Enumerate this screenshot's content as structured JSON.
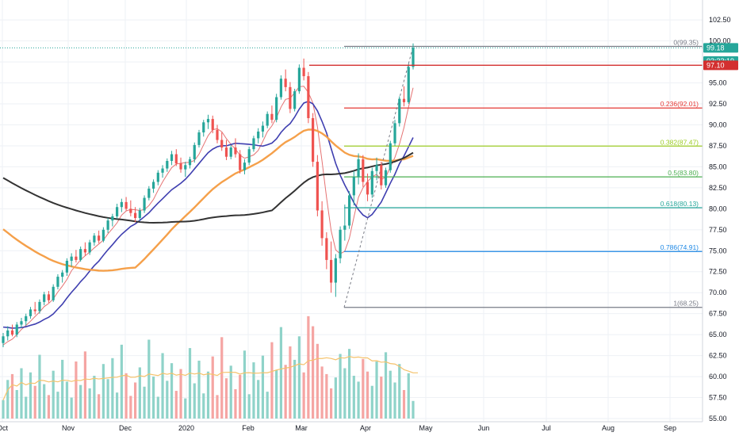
{
  "chart_data": {
    "type": "candlestick",
    "y_axis": {
      "range": [
        55.0,
        104.5
      ],
      "ticks": [
        "55.00",
        "57.50",
        "60.00",
        "62.50",
        "65.00",
        "67.50",
        "70.00",
        "72.50",
        "75.00",
        "77.50",
        "80.00",
        "82.50",
        "85.00",
        "87.50",
        "90.00",
        "92.50",
        "95.00",
        "97.50",
        "100.00",
        "102.50"
      ]
    },
    "x_axis": {
      "labels": [
        "Oct",
        "Nov",
        "Dec",
        "2020",
        "Feb",
        "Mar",
        "Apr",
        "May",
        "Jun",
        "Jul",
        "Aug",
        "Sep"
      ]
    },
    "price_tags": [
      {
        "value": 99.18,
        "text": "99.18",
        "color": "#26a69a"
      },
      {
        "value": 97.6,
        "text": "03:33:19",
        "color": "#26a69a"
      },
      {
        "value": 97.1,
        "text": "97.10",
        "color": "#d32f2f"
      }
    ],
    "horizontal_line": {
      "value": 97.1,
      "color": "#d32f2f"
    },
    "fibonacci": [
      {
        "level": 0,
        "price": 99.35,
        "label": "0(99.35)",
        "color": "#787b86"
      },
      {
        "level": 0.236,
        "price": 92.01,
        "label": "0.236(92.01)",
        "color": "#e53935"
      },
      {
        "level": 0.382,
        "price": 87.47,
        "label": "0.382(87.47)",
        "color": "#9ccc24"
      },
      {
        "level": 0.5,
        "price": 83.8,
        "label": "0.5(83.80)",
        "color": "#4caf50"
      },
      {
        "level": 0.618,
        "price": 80.13,
        "label": "0.618(80.13)",
        "color": "#26a69a"
      },
      {
        "level": 0.786,
        "price": 74.91,
        "label": "0.786(74.91)",
        "color": "#1e88e5"
      },
      {
        "level": 1,
        "price": 68.25,
        "label": "1(68.25)",
        "color": "#787b86"
      }
    ],
    "candles": [
      [
        64.0,
        65.2,
        63.5,
        64.8
      ],
      [
        64.8,
        66.0,
        64.3,
        65.5
      ],
      [
        65.5,
        66.2,
        64.8,
        65.0
      ],
      [
        65.0,
        66.5,
        64.7,
        66.2
      ],
      [
        66.2,
        67.0,
        65.8,
        66.6
      ],
      [
        66.6,
        67.5,
        66.1,
        67.2
      ],
      [
        67.2,
        68.3,
        66.9,
        68.0
      ],
      [
        68.0,
        68.9,
        67.4,
        67.8
      ],
      [
        67.8,
        69.2,
        67.5,
        68.9
      ],
      [
        68.9,
        70.1,
        68.5,
        69.8
      ],
      [
        69.8,
        70.2,
        68.8,
        69.1
      ],
      [
        69.1,
        71.0,
        68.9,
        70.7
      ],
      [
        70.7,
        72.2,
        70.4,
        71.9
      ],
      [
        71.9,
        72.7,
        71.2,
        72.4
      ],
      [
        72.4,
        74.1,
        72.0,
        73.8
      ],
      [
        73.8,
        74.7,
        73.1,
        74.3
      ],
      [
        74.3,
        75.1,
        73.6,
        73.9
      ],
      [
        73.9,
        75.5,
        73.7,
        75.2
      ],
      [
        75.2,
        76.0,
        74.4,
        74.8
      ],
      [
        74.8,
        76.3,
        74.5,
        76.0
      ],
      [
        76.0,
        77.1,
        75.6,
        76.8
      ],
      [
        76.8,
        77.4,
        75.9,
        76.2
      ],
      [
        76.2,
        77.8,
        76.0,
        77.5
      ],
      [
        77.5,
        78.9,
        77.1,
        78.6
      ],
      [
        78.6,
        79.4,
        77.9,
        79.1
      ],
      [
        79.1,
        80.6,
        78.8,
        80.2
      ],
      [
        80.2,
        81.2,
        79.6,
        80.8
      ],
      [
        80.8,
        81.4,
        79.8,
        80.0
      ],
      [
        80.0,
        81.0,
        79.1,
        79.5
      ],
      [
        79.5,
        80.2,
        78.4,
        78.9
      ],
      [
        78.9,
        80.1,
        78.6,
        79.8
      ],
      [
        79.8,
        81.6,
        79.5,
        81.3
      ],
      [
        81.3,
        82.7,
        81.0,
        82.4
      ],
      [
        82.4,
        83.5,
        81.9,
        83.2
      ],
      [
        83.2,
        84.6,
        82.8,
        84.3
      ],
      [
        84.3,
        85.2,
        83.7,
        84.8
      ],
      [
        84.8,
        86.0,
        84.4,
        85.7
      ],
      [
        85.7,
        86.9,
        85.2,
        86.5
      ],
      [
        86.5,
        87.1,
        85.1,
        85.4
      ],
      [
        85.4,
        86.1,
        84.3,
        84.7
      ],
      [
        84.7,
        85.6,
        83.8,
        85.2
      ],
      [
        85.2,
        86.2,
        84.8,
        85.9
      ],
      [
        85.9,
        87.9,
        85.5,
        87.6
      ],
      [
        87.6,
        89.4,
        87.3,
        89.1
      ],
      [
        89.1,
        90.6,
        88.6,
        90.3
      ],
      [
        90.3,
        91.2,
        89.5,
        90.7
      ],
      [
        90.7,
        91.1,
        89.0,
        89.4
      ],
      [
        89.4,
        90.0,
        87.8,
        88.2
      ],
      [
        88.2,
        89.1,
        86.9,
        87.3
      ],
      [
        87.3,
        88.2,
        85.8,
        86.2
      ],
      [
        86.2,
        87.6,
        85.9,
        87.3
      ],
      [
        87.3,
        88.4,
        86.1,
        86.5
      ],
      [
        86.5,
        87.0,
        84.2,
        84.6
      ],
      [
        84.6,
        85.9,
        84.1,
        85.5
      ],
      [
        85.5,
        87.4,
        85.2,
        87.1
      ],
      [
        87.1,
        88.7,
        86.8,
        88.4
      ],
      [
        88.4,
        89.6,
        87.8,
        89.2
      ],
      [
        89.2,
        90.4,
        88.5,
        89.9
      ],
      [
        89.9,
        91.6,
        89.6,
        91.3
      ],
      [
        91.3,
        92.3,
        90.2,
        90.6
      ],
      [
        90.6,
        93.7,
        90.3,
        93.3
      ],
      [
        93.3,
        95.9,
        93.0,
        95.5
      ],
      [
        95.5,
        96.6,
        94.0,
        94.5
      ],
      [
        94.5,
        95.1,
        91.4,
        91.9
      ],
      [
        91.9,
        94.3,
        91.6,
        94.0
      ],
      [
        94.0,
        97.2,
        93.7,
        96.8
      ],
      [
        96.8,
        97.9,
        95.3,
        95.8
      ],
      [
        95.8,
        96.3,
        90.2,
        90.8
      ],
      [
        90.8,
        91.4,
        85.0,
        85.6
      ],
      [
        85.6,
        86.4,
        79.1,
        79.8
      ],
      [
        79.8,
        80.9,
        75.6,
        76.5
      ],
      [
        76.5,
        77.2,
        72.8,
        73.9
      ],
      [
        73.9,
        76.1,
        70.0,
        71.2
      ],
      [
        71.2,
        74.6,
        69.5,
        74.1
      ],
      [
        74.1,
        77.9,
        73.5,
        77.5
      ],
      [
        77.5,
        80.5,
        76.2,
        78.0
      ],
      [
        78.0,
        82.1,
        77.6,
        81.6
      ],
      [
        81.6,
        84.5,
        80.4,
        83.8
      ],
      [
        83.8,
        86.6,
        82.9,
        85.9
      ],
      [
        85.9,
        86.4,
        82.6,
        83.2
      ],
      [
        83.2,
        84.2,
        80.9,
        81.7
      ],
      [
        81.7,
        84.9,
        81.3,
        84.5
      ],
      [
        84.5,
        86.1,
        83.4,
        85.2
      ],
      [
        85.2,
        85.6,
        82.3,
        82.8
      ],
      [
        82.8,
        84.9,
        82.5,
        84.6
      ],
      [
        84.6,
        88.1,
        84.3,
        87.8
      ],
      [
        87.8,
        90.6,
        87.5,
        90.2
      ],
      [
        90.2,
        93.4,
        89.8,
        93.1
      ],
      [
        93.1,
        94.6,
        92.2,
        92.7
      ],
      [
        92.7,
        97.3,
        92.5,
        96.9
      ],
      [
        96.9,
        99.7,
        96.6,
        99.18
      ]
    ],
    "volume": [
      57.2,
      59.6,
      60.3,
      58.4,
      61.0,
      57.6,
      60.5,
      58.9,
      62.6,
      59.1,
      57.8,
      60.7,
      58.2,
      62.0,
      59.4,
      57.5,
      61.8,
      59.0,
      63.0,
      58.6,
      60.1,
      57.9,
      61.5,
      59.7,
      62.2,
      58.1,
      63.8,
      60.4,
      57.7,
      59.3,
      61.1,
      58.8,
      64.4,
      60.0,
      57.6,
      62.8,
      59.5,
      61.6,
      58.3,
      60.9,
      57.4,
      63.4,
      59.2,
      61.9,
      58.0,
      60.6,
      62.4,
      57.8,
      64.7,
      59.8,
      61.3,
      58.5,
      60.2,
      63.1,
      57.9,
      61.7,
      59.6,
      62.5,
      58.2,
      64.1,
      60.8,
      65.9,
      61.4,
      63.6,
      62.0,
      64.8,
      60.5,
      67.2,
      66.0,
      63.9,
      61.2,
      60.3,
      58.6,
      59.9,
      62.7,
      61.0,
      63.3,
      60.1,
      59.4,
      62.1,
      60.6,
      58.9,
      61.8,
      60.0,
      62.9,
      60.7,
      59.3,
      61.5,
      58.4,
      60.4,
      57.1
    ],
    "moving_averages": [
      {
        "name": "",
        "color": "#e57373",
        "values": []
      },
      {
        "name": "",
        "color": "#3f3fb0",
        "values": []
      },
      {
        "name": "",
        "color": "#f5a04a",
        "values": []
      },
      {
        "name": "",
        "color": "#333333",
        "values": []
      }
    ],
    "volume_ma_color": "#f5c26b",
    "colors": {
      "up": "#26a69a",
      "down": "#ef5350",
      "grid": "#eef1f5",
      "axis_text": "#131722"
    }
  }
}
